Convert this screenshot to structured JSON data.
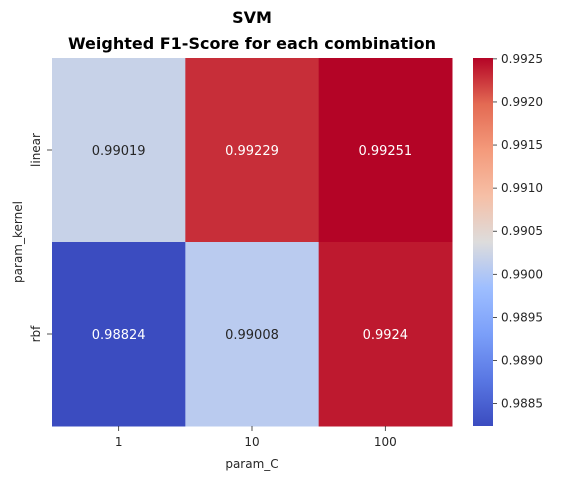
{
  "chart_data": {
    "type": "heatmap",
    "title": "SVM",
    "subtitle": "Weighted F1-Score for each combination",
    "xlabel": "param_C",
    "ylabel": "param_kernel",
    "x_categories": [
      "1",
      "10",
      "100"
    ],
    "y_categories": [
      "linear",
      "rbf"
    ],
    "values": [
      [
        0.99019,
        0.99229,
        0.99251
      ],
      [
        0.98824,
        0.99008,
        0.9924
      ]
    ],
    "cell_labels": [
      [
        "0.99019",
        "0.99229",
        "0.99251"
      ],
      [
        "0.98824",
        "0.99008",
        "0.9924"
      ]
    ],
    "colormap": "coolwarm",
    "vmin": 0.98824,
    "vmax": 0.99251,
    "colorbar_ticks": [
      "0.9885",
      "0.9890",
      "0.9895",
      "0.9900",
      "0.9905",
      "0.9910",
      "0.9915",
      "0.9920",
      "0.9925"
    ],
    "colorbar_tick_values": [
      0.9885,
      0.989,
      0.9895,
      0.99,
      0.9905,
      0.991,
      0.9915,
      0.992,
      0.9925
    ],
    "grid": false
  }
}
